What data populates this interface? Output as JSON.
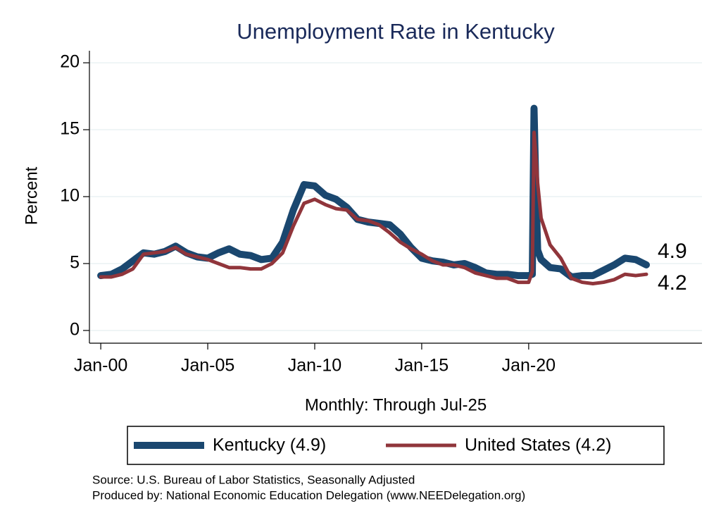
{
  "chart_data": {
    "type": "line",
    "title": "Unemployment Rate in Kentucky",
    "y_label": "Percent",
    "x_label": "Monthly: Through Jul-25",
    "notes": [
      "Source: U.S. Bureau of Labor Statistics, Seasonally Adjusted",
      "Produced by: National Economic Education Delegation (www.NEEDelegation.org)"
    ],
    "x": [
      2000,
      2000.5,
      2001,
      2001.5,
      2002,
      2002.5,
      2003,
      2003.5,
      2004,
      2004.5,
      2005,
      2005.5,
      2006,
      2006.5,
      2007,
      2007.5,
      2008,
      2008.5,
      2009,
      2009.5,
      2010,
      2010.5,
      2011,
      2011.5,
      2012,
      2012.5,
      2013,
      2013.5,
      2014,
      2014.5,
      2015,
      2015.5,
      2016,
      2016.5,
      2017,
      2017.5,
      2018,
      2018.5,
      2019,
      2019.5,
      2020,
      2020.17,
      2020.25,
      2020.33,
      2020.42,
      2020.58,
      2021,
      2021.5,
      2022,
      2022.5,
      2023,
      2023.5,
      2024,
      2024.5,
      2025,
      2025.5
    ],
    "series": [
      {
        "name": "Kentucky (4.9)",
        "color": "#1a476f",
        "width": 10,
        "values": [
          4.1,
          4.2,
          4.6,
          5.2,
          5.8,
          5.7,
          5.9,
          6.3,
          5.8,
          5.5,
          5.4,
          5.8,
          6.1,
          5.7,
          5.6,
          5.3,
          5.4,
          6.6,
          9.0,
          10.9,
          10.8,
          10.1,
          9.8,
          9.2,
          8.3,
          8.1,
          8.0,
          7.9,
          7.2,
          6.2,
          5.4,
          5.2,
          5.1,
          4.9,
          5.0,
          4.7,
          4.3,
          4.2,
          4.2,
          4.1,
          4.1,
          4.2,
          16.6,
          11.0,
          6.0,
          5.3,
          4.7,
          4.6,
          4.0,
          4.1,
          4.1,
          4.5,
          4.9,
          5.4,
          5.3,
          4.9
        ]
      },
      {
        "name": "United States (4.2)",
        "color": "#90353b",
        "width": 5,
        "values": [
          4.0,
          4.0,
          4.2,
          4.6,
          5.7,
          5.8,
          5.9,
          6.2,
          5.7,
          5.5,
          5.3,
          5.0,
          4.7,
          4.7,
          4.6,
          4.6,
          5.0,
          5.8,
          7.8,
          9.5,
          9.8,
          9.4,
          9.1,
          9.0,
          8.3,
          8.2,
          7.9,
          7.3,
          6.6,
          6.1,
          5.7,
          5.2,
          4.9,
          4.9,
          4.7,
          4.3,
          4.1,
          3.9,
          3.9,
          3.6,
          3.6,
          4.4,
          14.8,
          13.2,
          11.0,
          8.4,
          6.4,
          5.4,
          3.9,
          3.6,
          3.5,
          3.6,
          3.8,
          4.2,
          4.1,
          4.2
        ]
      }
    ],
    "xlim": [
      1999.47,
      2028.1
    ],
    "ylim": [
      -0.95,
      20.9
    ],
    "xticks": [
      {
        "value": 2000,
        "label": "Jan-00"
      },
      {
        "value": 2005,
        "label": "Jan-05"
      },
      {
        "value": 2010,
        "label": "Jan-10"
      },
      {
        "value": 2015,
        "label": "Jan-15"
      },
      {
        "value": 2020,
        "label": "Jan-20"
      }
    ],
    "yticks": [
      0,
      5,
      10,
      15,
      20
    ],
    "grid": true,
    "grid_color": "#eaf2f3"
  }
}
